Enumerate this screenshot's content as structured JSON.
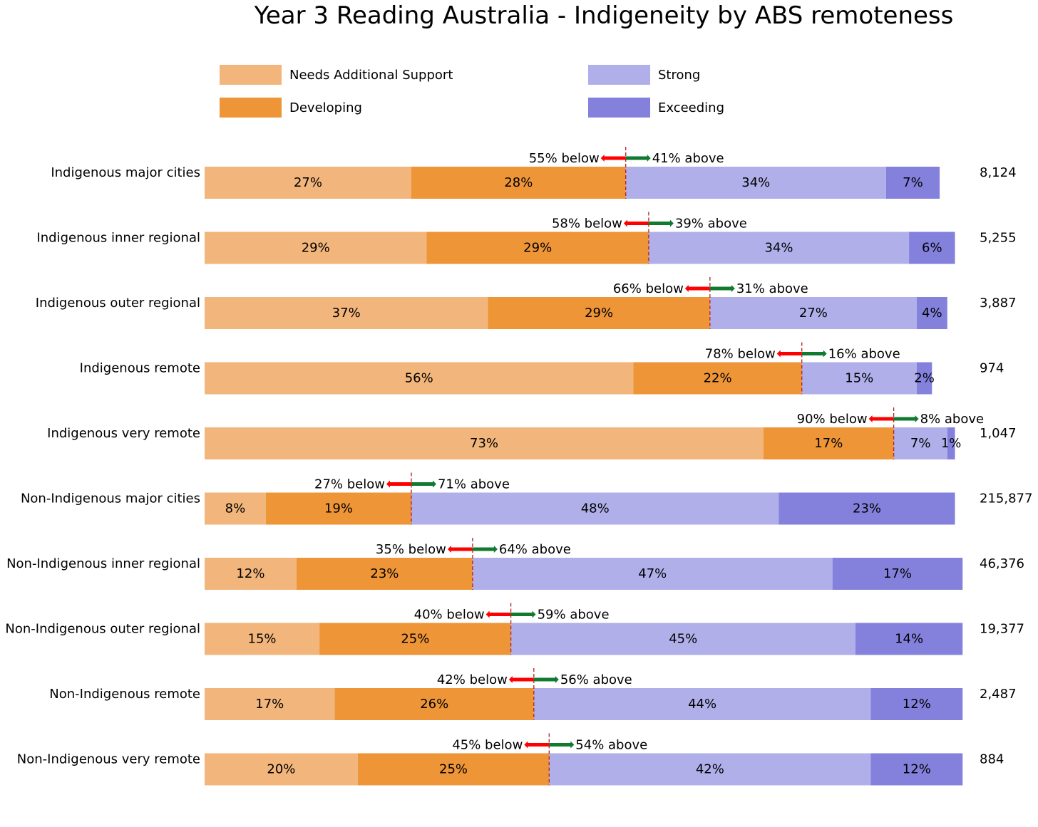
{
  "chart_data": {
    "type": "bar",
    "orientation": "horizontal-stacked-100",
    "title": "Year 3 Reading Australia - Indigeneity by ABS remoteness",
    "legend": {
      "placement": "top",
      "items": [
        {
          "key": "nas",
          "label": "Needs Additional Support",
          "color": "#f2b57b"
        },
        {
          "key": "dev",
          "label": "Developing",
          "color": "#ee9537"
        },
        {
          "key": "str",
          "label": "Strong",
          "color": "#b0afea"
        },
        {
          "key": "exc",
          "label": "Exceeding",
          "color": "#8481dd"
        }
      ]
    },
    "colors": {
      "divider": "#b22222",
      "below_arrow": "#ff0000",
      "above_arrow": "#107a30",
      "text": "#000000"
    },
    "categories": [
      "Indigenous major cities",
      "Indigenous inner regional",
      "Indigenous outer regional",
      "Indigenous remote",
      "Indigenous very remote",
      "Non-Indigenous major cities",
      "Non-Indigenous inner regional",
      "Non-Indigenous outer regional",
      "Non-Indigenous remote",
      "Non-Indigenous very remote"
    ],
    "series": [
      {
        "name": "Needs Additional Support",
        "values": [
          27,
          29,
          37,
          56,
          73,
          8,
          12,
          15,
          17,
          20
        ]
      },
      {
        "name": "Developing",
        "values": [
          28,
          29,
          29,
          22,
          17,
          19,
          23,
          25,
          26,
          25
        ]
      },
      {
        "name": "Strong",
        "values": [
          34,
          34,
          27,
          15,
          7,
          48,
          47,
          45,
          44,
          42
        ]
      },
      {
        "name": "Exceeding",
        "values": [
          7,
          6,
          4,
          2,
          1,
          23,
          17,
          14,
          12,
          12
        ]
      }
    ],
    "below_labels": [
      "55% below",
      "58% below",
      "66% below",
      "78% below",
      "90% below",
      "27% below",
      "35% below",
      "40% below",
      "42% below",
      "45% below"
    ],
    "above_labels": [
      "41% above",
      "39% above",
      "31% above",
      "16% above",
      "8% above",
      "71% above",
      "64% above",
      "59% above",
      "56% above",
      "54% above"
    ],
    "counts": [
      "8,124",
      "5,255",
      "3,887",
      "974",
      "1,047",
      "215,877",
      "46,376",
      "19,377",
      "2,487",
      "884"
    ],
    "xlim": [
      0,
      100
    ]
  }
}
